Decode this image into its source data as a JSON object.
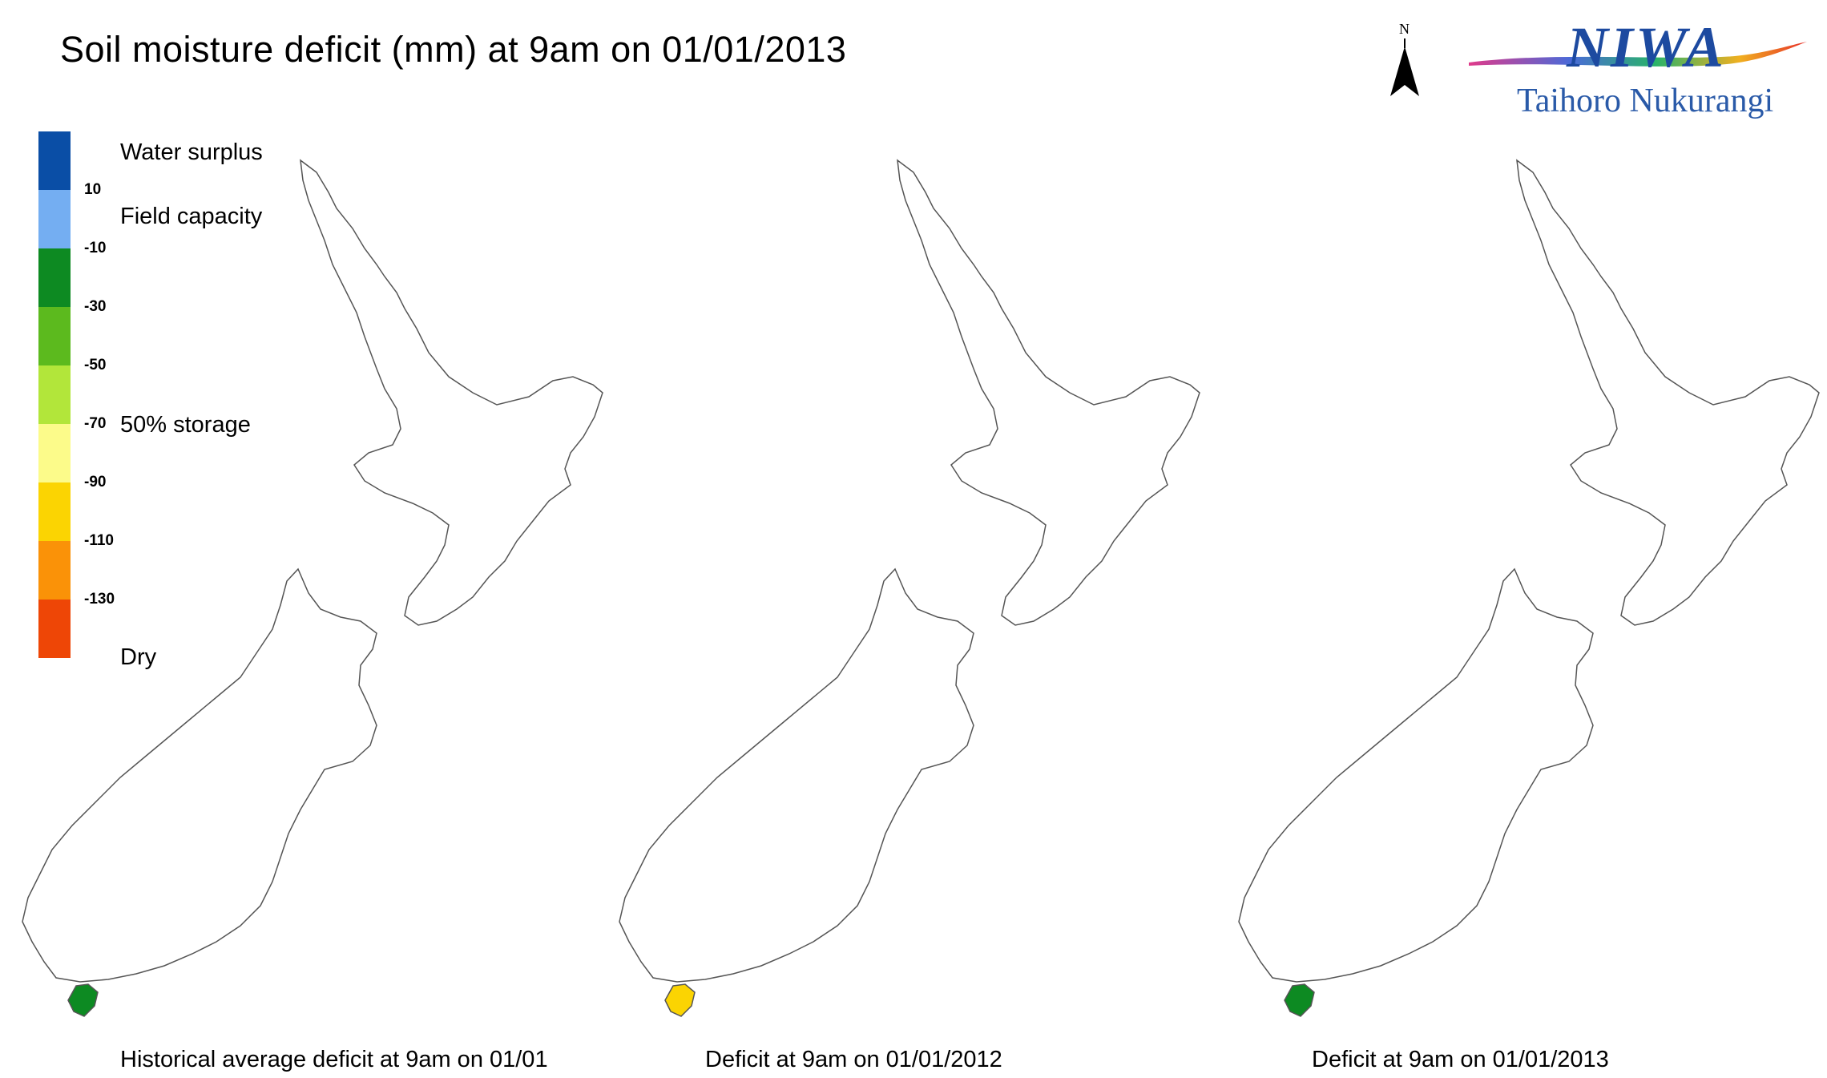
{
  "title": "Soil moisture deficit (mm) at  9am on 01/01/2013",
  "north_label": "N",
  "logo": {
    "name": "NIWA",
    "subtitle": "Taihoro Nukurangi"
  },
  "legend": {
    "classes": [
      {
        "color": "#0a4ea6"
      },
      {
        "color": "#74aef2"
      },
      {
        "color": "#0d8a22"
      },
      {
        "color": "#5cba1e"
      },
      {
        "color": "#b2e63a"
      },
      {
        "color": "#fcfb8a"
      },
      {
        "color": "#fbd402"
      },
      {
        "color": "#fa9208"
      },
      {
        "color": "#ee4606"
      }
    ],
    "ticks": [
      "10",
      "-10",
      "-30",
      "-50",
      "-70",
      "-90",
      "-110",
      "-130"
    ],
    "descriptions": {
      "surplus": "Water surplus",
      "field_capacity": "Field capacity",
      "half_storage": "50% storage",
      "dry": "Dry"
    }
  },
  "maps": [
    {
      "caption": "Historical average deficit at  9am on 01/01"
    },
    {
      "caption": "Deficit at  9am on 01/01/2012"
    },
    {
      "caption": "Deficit at  9am on 01/01/2013"
    }
  ]
}
